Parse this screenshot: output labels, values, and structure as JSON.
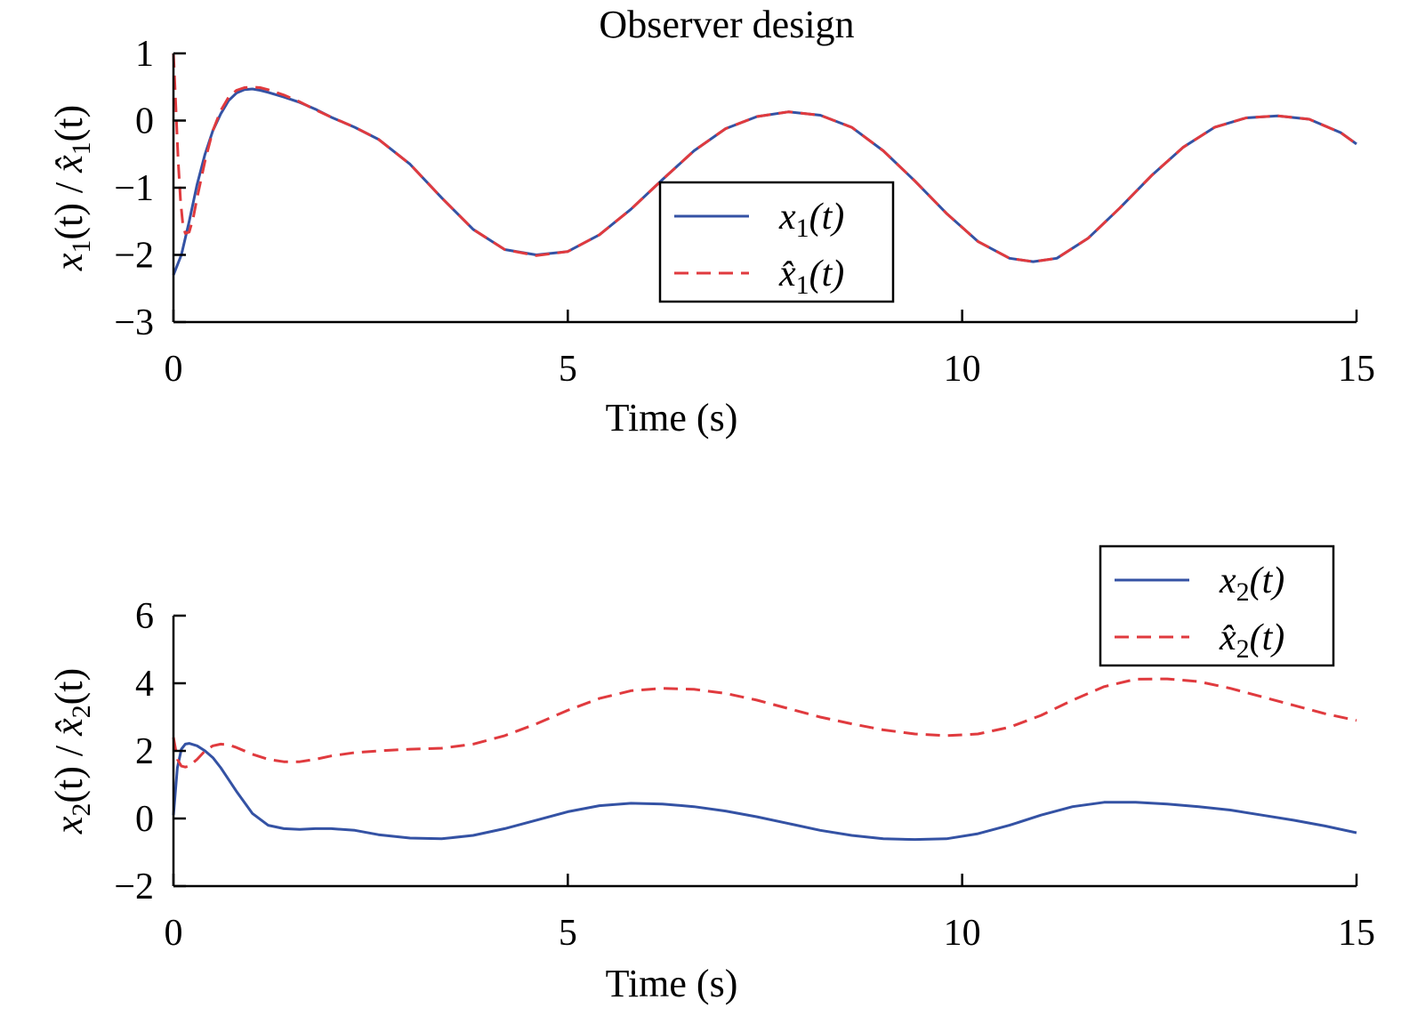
{
  "chart_data": [
    {
      "type": "line",
      "title": "Observer design",
      "xlabel": "Time (s)",
      "ylabel": "x1(t) / x̂1(t)",
      "ylabel_parts": {
        "a": "x",
        "a_sub": "1",
        "b": "x̂",
        "b_sub": "1",
        "arg": "(t)",
        "sep": " / "
      },
      "xlim": [
        0,
        15
      ],
      "ylim": [
        -3,
        1
      ],
      "xticks": [
        0,
        5,
        10,
        15
      ],
      "xtick_labels": [
        "0",
        "5",
        "10",
        "15"
      ],
      "yticks": [
        -3,
        -2,
        -1,
        0,
        1
      ],
      "ytick_labels": [
        "−3",
        "−2",
        "−1",
        "0",
        "1"
      ],
      "grid": false,
      "legend_position": "center-right",
      "series": [
        {
          "name": "x1(t)",
          "legend": {
            "base": "x",
            "sub": "1",
            "arg": "(t)"
          },
          "color": "#3452a4",
          "style": "solid",
          "x": [
            0,
            0.1,
            0.2,
            0.3,
            0.4,
            0.5,
            0.6,
            0.7,
            0.8,
            0.9,
            1.0,
            1.1,
            1.2,
            1.4,
            1.6,
            1.8,
            2.0,
            2.3,
            2.6,
            3.0,
            3.4,
            3.8,
            4.2,
            4.6,
            5.0,
            5.4,
            5.8,
            6.2,
            6.6,
            7.0,
            7.4,
            7.8,
            8.2,
            8.6,
            9.0,
            9.4,
            9.8,
            10.2,
            10.6,
            10.9,
            11.2,
            11.6,
            12.0,
            12.4,
            12.8,
            13.2,
            13.6,
            14.0,
            14.4,
            14.8,
            15.0
          ],
          "values": [
            -2.3,
            -2.0,
            -1.5,
            -0.95,
            -0.5,
            -0.15,
            0.1,
            0.3,
            0.41,
            0.46,
            0.47,
            0.45,
            0.42,
            0.35,
            0.27,
            0.17,
            0.05,
            -0.1,
            -0.28,
            -0.65,
            -1.15,
            -1.62,
            -1.92,
            -2.0,
            -1.95,
            -1.7,
            -1.32,
            -0.88,
            -0.45,
            -0.12,
            0.06,
            0.13,
            0.08,
            -0.1,
            -0.45,
            -0.9,
            -1.38,
            -1.8,
            -2.05,
            -2.1,
            -2.05,
            -1.75,
            -1.3,
            -0.82,
            -0.4,
            -0.1,
            0.04,
            0.07,
            0.02,
            -0.18,
            -0.35
          ]
        },
        {
          "name": "x̂1(t)",
          "legend": {
            "base": "x̂",
            "sub": "1",
            "arg": "(t)"
          },
          "color": "#e03a3e",
          "style": "dashed",
          "x": [
            0,
            0.03,
            0.06,
            0.09,
            0.12,
            0.15,
            0.2,
            0.25,
            0.3,
            0.4,
            0.5,
            0.6,
            0.7,
            0.8,
            0.9,
            1.0,
            1.1,
            1.2,
            1.4,
            1.6,
            1.8,
            2.0,
            2.3,
            2.6,
            3.0,
            3.4,
            3.8,
            4.2,
            4.6,
            5.0,
            5.4,
            5.8,
            6.2,
            6.6,
            7.0,
            7.4,
            7.8,
            8.2,
            8.6,
            9.0,
            9.4,
            9.8,
            10.2,
            10.6,
            10.9,
            11.2,
            11.6,
            12.0,
            12.4,
            12.8,
            13.2,
            13.6,
            14.0,
            14.4,
            14.8,
            15.0
          ],
          "values": [
            1.0,
            0.2,
            -0.6,
            -1.2,
            -1.55,
            -1.68,
            -1.66,
            -1.45,
            -1.15,
            -0.6,
            -0.15,
            0.15,
            0.35,
            0.45,
            0.49,
            0.5,
            0.49,
            0.46,
            0.38,
            0.28,
            0.16,
            0.05,
            -0.1,
            -0.28,
            -0.65,
            -1.15,
            -1.62,
            -1.92,
            -2.01,
            -1.95,
            -1.7,
            -1.32,
            -0.88,
            -0.45,
            -0.12,
            0.06,
            0.13,
            0.08,
            -0.1,
            -0.45,
            -0.9,
            -1.38,
            -1.8,
            -2.05,
            -2.1,
            -2.05,
            -1.75,
            -1.3,
            -0.82,
            -0.4,
            -0.1,
            0.04,
            0.07,
            0.02,
            -0.18,
            -0.35
          ]
        }
      ]
    },
    {
      "type": "line",
      "title": "",
      "xlabel": "Time (s)",
      "ylabel": "x2(t) / x̂2(t)",
      "ylabel_parts": {
        "a": "x",
        "a_sub": "2",
        "b": "x̂",
        "b_sub": "2",
        "arg": "(t)",
        "sep": " / "
      },
      "xlim": [
        0,
        15
      ],
      "ylim": [
        -2,
        6
      ],
      "xticks": [
        0,
        5,
        10,
        15
      ],
      "xtick_labels": [
        "0",
        "5",
        "10",
        "15"
      ],
      "yticks": [
        -2,
        0,
        2,
        4,
        6
      ],
      "ytick_labels": [
        "−2",
        "0",
        "2",
        "4",
        "6"
      ],
      "grid": false,
      "legend_position": "top-right",
      "series": [
        {
          "name": "x2(t)",
          "legend": {
            "base": "x",
            "sub": "2",
            "arg": "(t)"
          },
          "color": "#3452a4",
          "style": "solid",
          "x": [
            0,
            0.05,
            0.1,
            0.15,
            0.2,
            0.3,
            0.4,
            0.5,
            0.6,
            0.8,
            1.0,
            1.2,
            1.4,
            1.6,
            1.8,
            2.0,
            2.3,
            2.6,
            3.0,
            3.4,
            3.8,
            4.2,
            4.6,
            5.0,
            5.4,
            5.8,
            6.2,
            6.6,
            7.0,
            7.4,
            7.8,
            8.2,
            8.6,
            9.0,
            9.4,
            9.8,
            10.2,
            10.6,
            11.0,
            11.4,
            11.8,
            12.2,
            12.6,
            13.0,
            13.4,
            13.8,
            14.2,
            14.6,
            15.0
          ],
          "values": [
            0.1,
            1.5,
            2.05,
            2.2,
            2.22,
            2.15,
            2.0,
            1.8,
            1.5,
            0.8,
            0.15,
            -0.2,
            -0.3,
            -0.32,
            -0.3,
            -0.3,
            -0.35,
            -0.48,
            -0.58,
            -0.6,
            -0.5,
            -0.3,
            -0.05,
            0.2,
            0.38,
            0.45,
            0.43,
            0.35,
            0.22,
            0.05,
            -0.15,
            -0.35,
            -0.5,
            -0.6,
            -0.62,
            -0.6,
            -0.45,
            -0.2,
            0.1,
            0.35,
            0.48,
            0.48,
            0.43,
            0.35,
            0.25,
            0.1,
            -0.05,
            -0.22,
            -0.42
          ]
        },
        {
          "name": "x̂2(t)",
          "legend": {
            "base": "x̂",
            "sub": "2",
            "arg": "(t)"
          },
          "color": "#e03a3e",
          "style": "dashed",
          "x": [
            0,
            0.05,
            0.1,
            0.15,
            0.2,
            0.3,
            0.4,
            0.5,
            0.6,
            0.7,
            0.8,
            1.0,
            1.2,
            1.4,
            1.6,
            1.8,
            2.0,
            2.3,
            2.6,
            3.0,
            3.4,
            3.8,
            4.2,
            4.6,
            5.0,
            5.4,
            5.8,
            6.2,
            6.6,
            7.0,
            7.4,
            7.8,
            8.2,
            8.6,
            9.0,
            9.4,
            9.8,
            10.2,
            10.6,
            11.0,
            11.4,
            11.8,
            12.2,
            12.6,
            13.0,
            13.4,
            13.8,
            14.2,
            14.6,
            15.0
          ],
          "values": [
            2.4,
            1.75,
            1.55,
            1.52,
            1.55,
            1.75,
            2.0,
            2.15,
            2.2,
            2.18,
            2.1,
            1.9,
            1.75,
            1.68,
            1.68,
            1.75,
            1.85,
            1.95,
            2.0,
            2.05,
            2.08,
            2.2,
            2.45,
            2.8,
            3.2,
            3.55,
            3.78,
            3.85,
            3.82,
            3.7,
            3.5,
            3.25,
            3.0,
            2.8,
            2.62,
            2.5,
            2.45,
            2.5,
            2.7,
            3.05,
            3.5,
            3.9,
            4.12,
            4.13,
            4.05,
            3.85,
            3.6,
            3.35,
            3.1,
            2.9
          ]
        }
      ]
    }
  ]
}
